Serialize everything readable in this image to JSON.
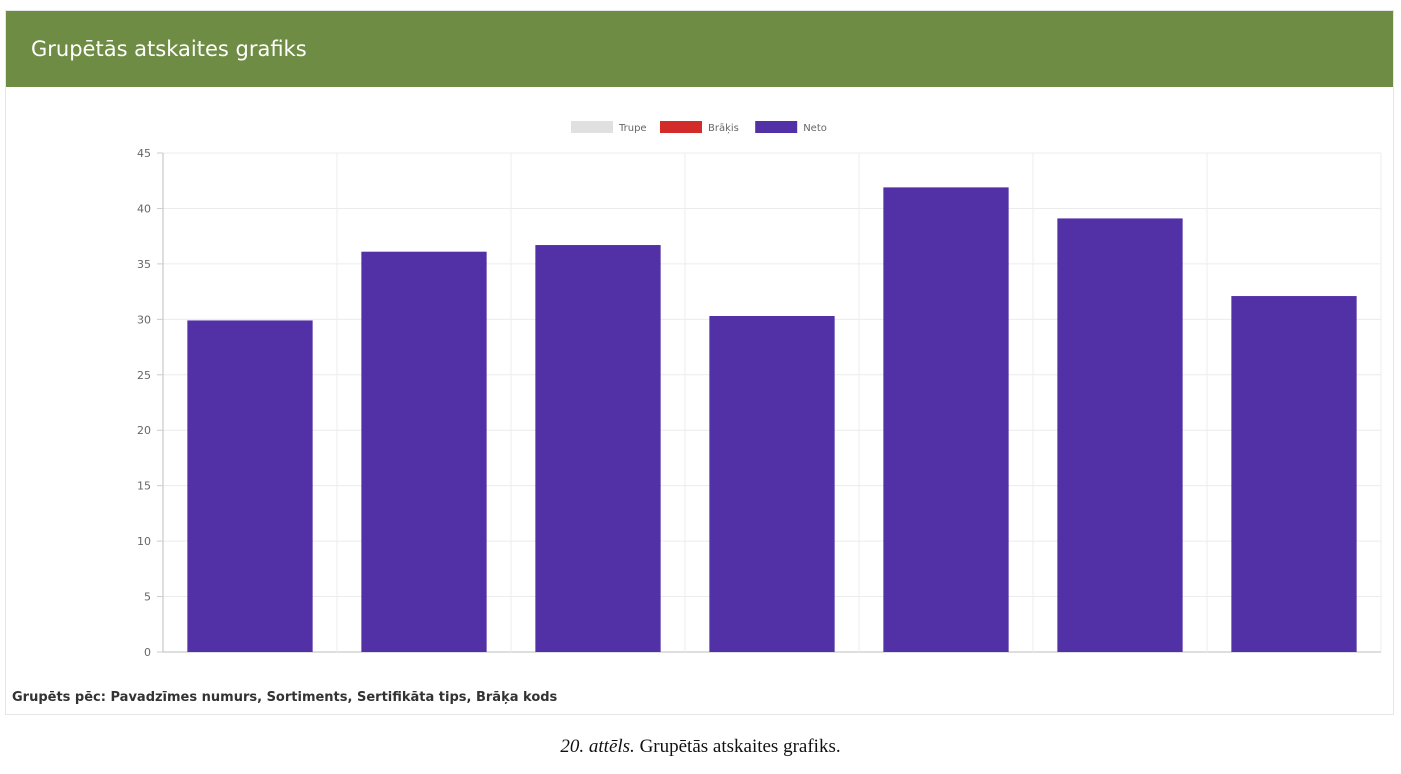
{
  "panel": {
    "title": "Grupētās atskaites grafiks",
    "grouped_by": "Grupēts pēc: Pavadzīmes numurs, Sortiments, Sertifikāta tips, Brāķa kods"
  },
  "caption": {
    "number": "20. attēls.",
    "text": " Grupētās atskaites grafiks."
  },
  "colors": {
    "header": "#6f8c45",
    "trupe": "#e0e0e0",
    "braks": "#d32a2a",
    "neto": "#5230a6"
  },
  "chart_data": {
    "type": "bar",
    "categories": [
      "",
      "",
      "",
      "",
      "",
      "",
      ""
    ],
    "series": [
      {
        "name": "Trupe",
        "color": "#e0e0e0",
        "values": [
          0,
          0,
          0,
          0,
          0,
          0,
          0
        ]
      },
      {
        "name": "Brāķis",
        "color": "#d32a2a",
        "values": [
          0,
          0,
          0,
          0,
          0,
          0,
          0
        ]
      },
      {
        "name": "Neto",
        "color": "#5230a6",
        "values": [
          29.9,
          36.1,
          36.7,
          30.3,
          41.9,
          39.1,
          32.1
        ]
      }
    ],
    "y_ticks": [
      "0",
      "5",
      "10",
      "15",
      "20",
      "25",
      "30",
      "35",
      "40",
      "45"
    ],
    "ylim": [
      0,
      45
    ],
    "legend_position": "top-center",
    "grid": true
  }
}
